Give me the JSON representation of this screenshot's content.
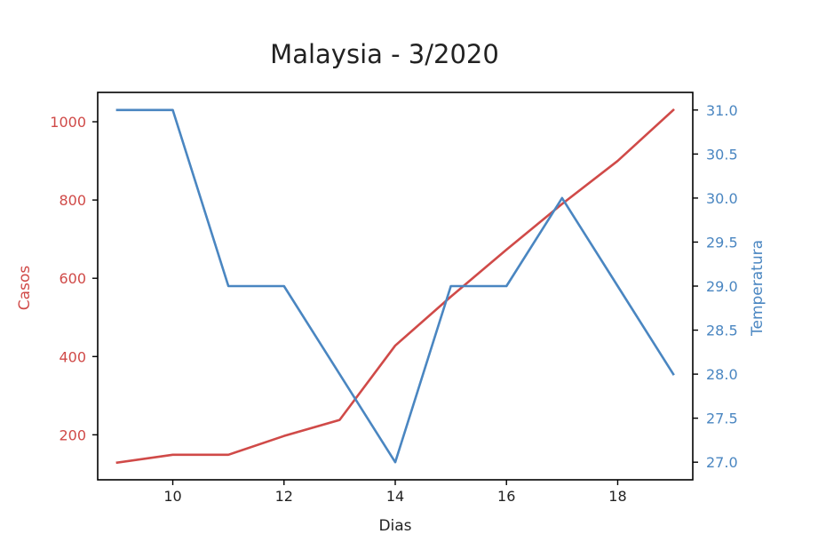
{
  "chart_data": {
    "type": "line",
    "title": "Malaysia - 3/2020",
    "xlabel": "Dias",
    "x": [
      9,
      10,
      11,
      12,
      13,
      14,
      15,
      16,
      17,
      18,
      19
    ],
    "xlim": [
      8.65,
      19.35
    ],
    "xticks": [
      10,
      12,
      14,
      16,
      18
    ],
    "left_axis": {
      "label": "Casos",
      "color": "#d04a48",
      "ylim": [
        85,
        1075
      ],
      "ticks": [
        200,
        400,
        600,
        800,
        1000
      ]
    },
    "right_axis": {
      "label": "Temperatura",
      "color": "#4a86c1",
      "ylim": [
        26.8,
        31.2
      ],
      "ticks": [
        27.0,
        27.5,
        28.0,
        28.5,
        29.0,
        29.5,
        30.0,
        30.5,
        31.0
      ],
      "tick_decimals": 1
    },
    "series": [
      {
        "axis": "left",
        "color": "#d04a48",
        "values": [
          129,
          149,
          149,
          197,
          238,
          428,
          553,
          673,
          790,
          900,
          1030
        ]
      },
      {
        "axis": "right",
        "color": "#4a86c1",
        "values": [
          31,
          31,
          29,
          29,
          28,
          27,
          29,
          29,
          30,
          29,
          28
        ]
      }
    ],
    "grid": false
  }
}
